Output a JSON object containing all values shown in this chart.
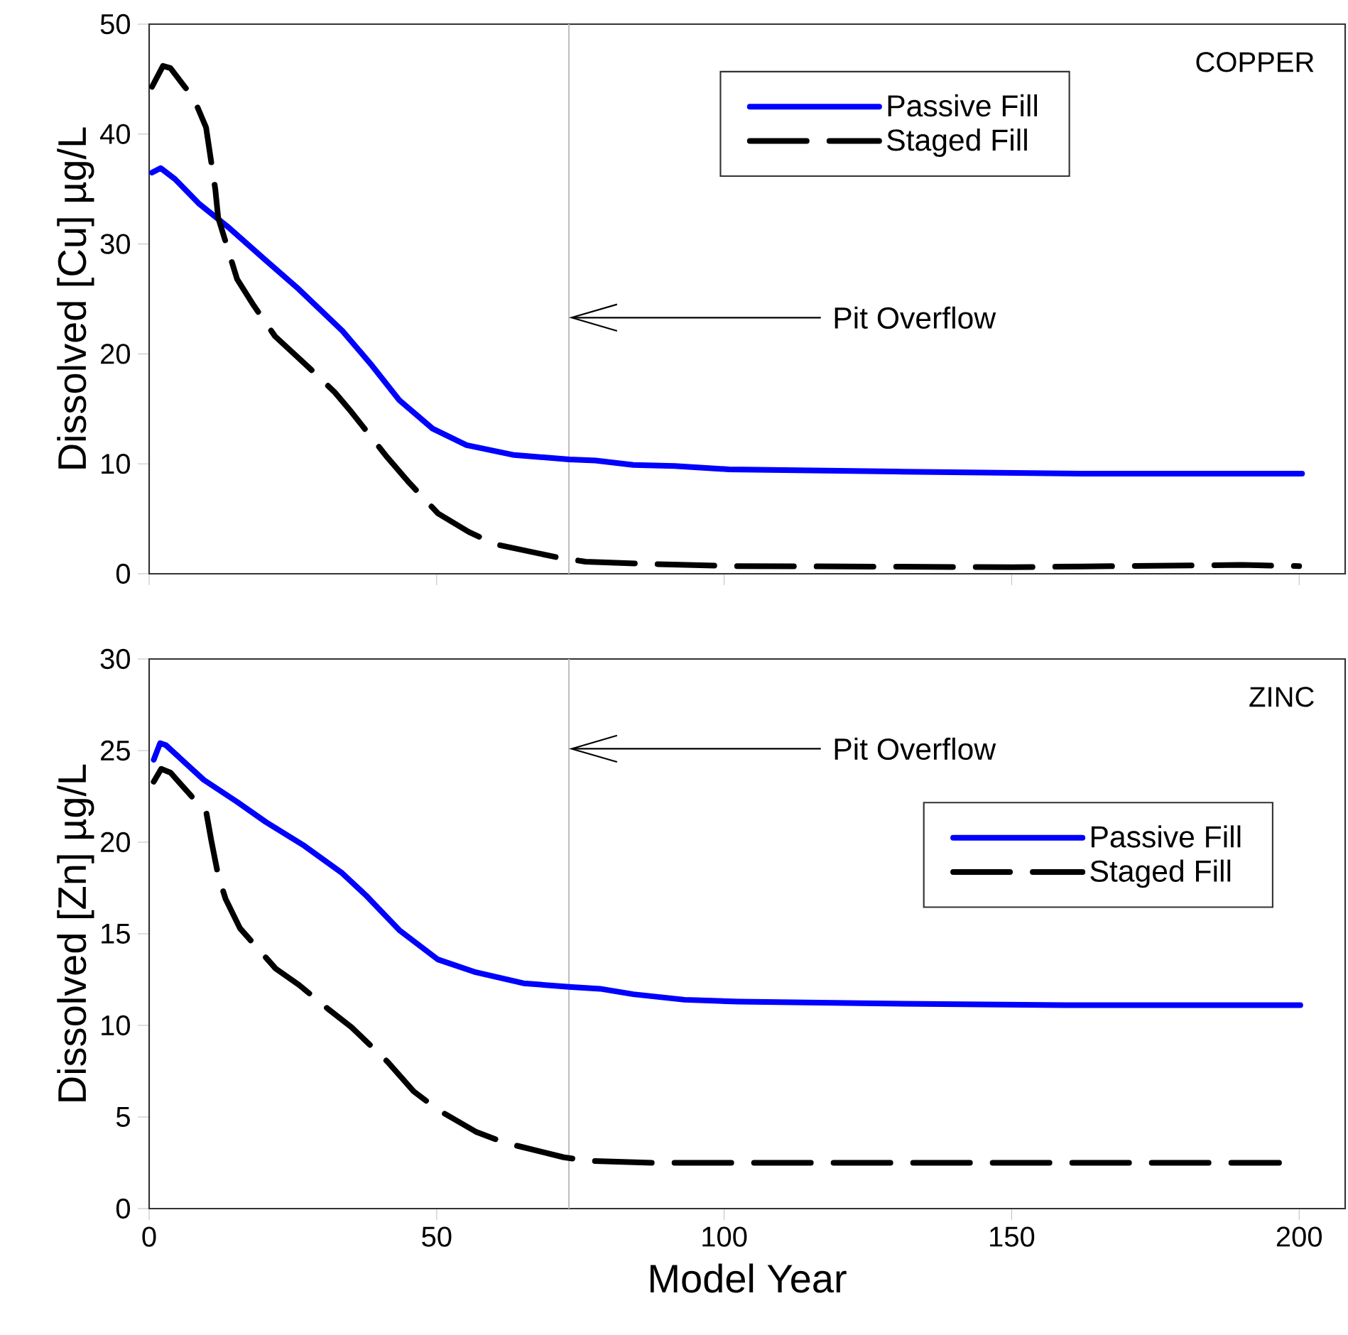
{
  "chart_data": [
    {
      "type": "line",
      "ylabel": "Dissolved [Cu] µg/L",
      "xlim": [
        0,
        208
      ],
      "xticks": [
        0,
        50,
        100,
        150,
        200
      ],
      "ylim": [
        0,
        50
      ],
      "yticks": [
        0,
        10,
        20,
        30,
        40,
        50
      ],
      "tick_labels": "y",
      "legend": "top right",
      "series": [
        {
          "name": "Passive Fill",
          "color": "#0000ff",
          "line_style": "solid",
          "x": [
            0.5,
            2,
            4.5,
            8.6,
            13.6,
            20.3,
            26,
            33.6,
            38.5,
            43.5,
            49.3,
            55.2,
            63.5,
            73.1,
            77.6,
            84.2,
            91.4,
            100.8,
            129.6,
            162,
            200.5
          ],
          "values": [
            36.5,
            36.9,
            35.9,
            33.7,
            31.6,
            28.5,
            25.9,
            22.1,
            19.1,
            15.8,
            13.2,
            11.7,
            10.8,
            10.4,
            10.3,
            9.9,
            9.8,
            9.5,
            9.3,
            9.1,
            9.1
          ]
        },
        {
          "name": "Staged Fill",
          "color": "#000000",
          "line_style": "dashed",
          "x": [
            0.5,
            2.4,
            3.7,
            7.8,
            9.9,
            11.5,
            12,
            15.3,
            18.2,
            21.9,
            27.7,
            32.3,
            35.2,
            41.4,
            45.2,
            50.2,
            55.6,
            60.1,
            70.9,
            75.9,
            86.8,
            101.7,
            150,
            190,
            200
          ],
          "values": [
            44.3,
            46.2,
            46.0,
            43.2,
            40.6,
            35.0,
            32.4,
            26.8,
            24.4,
            21.6,
            18.8,
            16.5,
            14.7,
            10.6,
            8.3,
            5.5,
            3.8,
            2.7,
            1.5,
            1.1,
            0.9,
            0.7,
            0.6,
            0.8,
            0.7
          ]
        }
      ],
      "ref_lines": [
        {
          "axis": "x",
          "value": 73,
          "color": "#c0c0c0",
          "label": "Pit Overflow"
        }
      ],
      "annotations": [
        "COPPER"
      ]
    },
    {
      "type": "line",
      "xlabel": "Model Year",
      "ylabel": "Dissolved [Zn] µg/L",
      "xlim": [
        0,
        208
      ],
      "xticks": [
        0,
        50,
        100,
        150,
        200
      ],
      "ylim": [
        0,
        30
      ],
      "yticks": [
        0,
        5,
        10,
        15,
        20,
        25,
        30
      ],
      "legend": "right",
      "series": [
        {
          "name": "Passive Fill",
          "color": "#0000ff",
          "line_style": "solid",
          "x": [
            0.8,
            1.9,
            2.9,
            9.5,
            15.3,
            20.3,
            27,
            33.6,
            37.7,
            43.5,
            50.2,
            56.8,
            65.1,
            73,
            78.4,
            84.2,
            93.1,
            102.4,
            126.2,
            159.3,
            200.2
          ],
          "values": [
            24.5,
            25.4,
            25.3,
            23.4,
            22.2,
            21.1,
            19.8,
            18.3,
            17.1,
            15.2,
            13.6,
            12.9,
            12.3,
            12.1,
            12.0,
            11.7,
            11.4,
            11.3,
            11.2,
            11.1,
            11.1
          ]
        },
        {
          "name": "Staged Fill",
          "color": "#000000",
          "line_style": "dashed",
          "x": [
            0.8,
            2.1,
            3.7,
            9.95,
            10.8,
            12,
            13.3,
            15.8,
            22,
            26.1,
            31.1,
            35.2,
            41.5,
            46,
            50.2,
            56.8,
            61.8,
            72.1,
            76.7,
            87.9,
            102.4,
            150,
            196.5
          ],
          "values": [
            23.3,
            24.0,
            23.8,
            21.6,
            20.1,
            18.2,
            16.9,
            15.3,
            13.1,
            12.2,
            10.9,
            9.9,
            8.0,
            6.4,
            5.4,
            4.2,
            3.6,
            2.8,
            2.6,
            2.5,
            2.5,
            2.5,
            2.5
          ]
        }
      ],
      "ref_lines": [
        {
          "axis": "x",
          "value": 73,
          "color": "#c0c0c0",
          "label": "Pit Overflow"
        }
      ],
      "annotations": [
        "ZINC"
      ]
    }
  ]
}
